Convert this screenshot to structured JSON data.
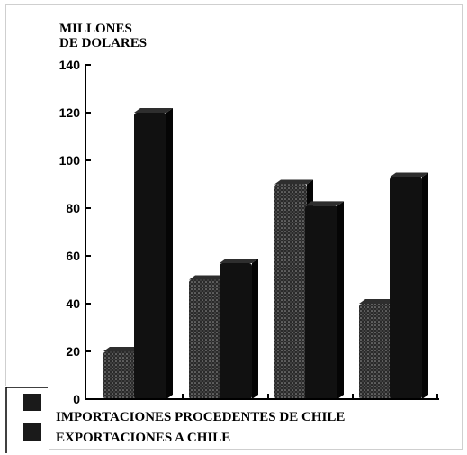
{
  "chart_data": {
    "type": "bar",
    "title": "",
    "unit_label_lines": [
      "MILLONES",
      "DE DOLARES"
    ],
    "xlabel": "",
    "ylabel": "MILLONES DE DOLARES",
    "categories": [
      "",
      "",
      "",
      ""
    ],
    "ylim": [
      0,
      140
    ],
    "yticks": [
      0,
      20,
      40,
      60,
      80,
      100,
      120,
      140
    ],
    "grid": false,
    "legend_position": "bottom-left",
    "series": [
      {
        "name": "IMPORTACIONES PROCEDENTES DE CHILE",
        "color": "#202020",
        "pattern": "stippled",
        "values": [
          20,
          50,
          90,
          40
        ]
      },
      {
        "name": "EXPORTACIONES A CHILE",
        "color": "#111111",
        "pattern": "solid",
        "values": [
          120,
          57,
          81,
          93
        ]
      }
    ]
  }
}
